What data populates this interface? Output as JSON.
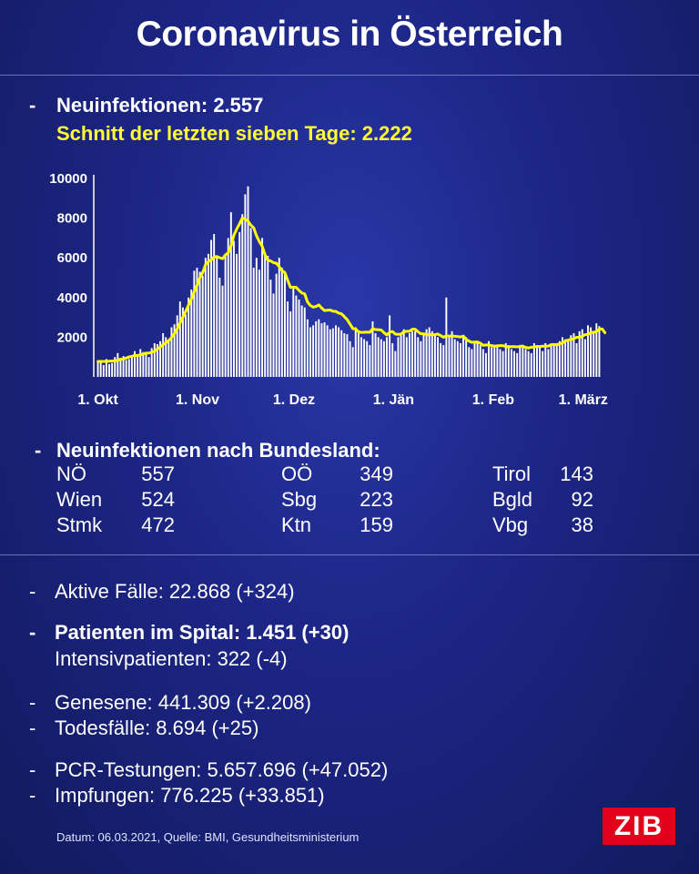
{
  "title": "Coronavirus in Österreich",
  "headline": {
    "bullet": "-",
    "new_infections": "Neuinfektionen: 2.557",
    "avg_7day": "Schnitt der letzten sieben Tage: 2.222"
  },
  "colors": {
    "bar": "#ffffff",
    "avg_line": "#ffff00",
    "logo_bg": "#e3001b",
    "avg_text": "#ffff33"
  },
  "chart_data": {
    "type": "bar",
    "x_start": "2020-10-01",
    "x_end": "2021-03-06",
    "x_tick_labels": [
      "1. Okt",
      "1. Nov",
      "1. Dez",
      "1. Jän",
      "1. Feb",
      "1. März"
    ],
    "y_ticks": [
      2000,
      4000,
      6000,
      8000,
      10000
    ],
    "ylim": [
      0,
      10000
    ],
    "grid": false,
    "series": [
      {
        "kind": "bars",
        "values": [
          800,
          750,
          600,
          900,
          650,
          700,
          1000,
          1200,
          950,
          1050,
          850,
          900,
          1100,
          1300,
          1150,
          1400,
          1250,
          1150,
          1000,
          1450,
          1700,
          1650,
          1800,
          2200,
          2000,
          1900,
          2500,
          2650,
          3100,
          3800,
          3500,
          3150,
          4000,
          4400,
          5350,
          5500,
          5300,
          5100,
          6000,
          6200,
          6900,
          7200,
          6000,
          5000,
          4600,
          6100,
          7000,
          8300,
          6850,
          6200,
          7300,
          8200,
          9200,
          9600,
          7500,
          5500,
          6000,
          5400,
          7000,
          6200,
          6100,
          4900,
          4200,
          5200,
          6000,
          5500,
          5200,
          3800,
          3300,
          4500,
          4100,
          3900,
          3600,
          3500,
          2900,
          2500,
          2600,
          2800,
          2900,
          2700,
          2750,
          2600,
          2400,
          2450,
          2600,
          2500,
          2350,
          2200,
          2150,
          1800,
          1500,
          2500,
          2200,
          2000,
          1900,
          1800,
          1600,
          2800,
          2200,
          2000,
          1900,
          1800,
          2000,
          3100,
          1700,
          1300,
          2000,
          2100,
          2400,
          2000,
          2200,
          2300,
          2300,
          2000,
          1800,
          2200,
          2400,
          2500,
          2300,
          2100,
          2000,
          1700,
          1600,
          4000,
          2000,
          2300,
          1900,
          1800,
          1700,
          2100,
          2000,
          1500,
          1400,
          1800,
          1700,
          1600,
          1400,
          1200,
          1800,
          1500,
          1550,
          1500,
          1400,
          1300,
          1700,
          1600,
          1400,
          1300,
          1200,
          1500,
          1500,
          1400,
          1300,
          1200,
          1700,
          1600,
          1500,
          1300,
          1700,
          1400,
          1600,
          1650,
          1700,
          1800,
          2000,
          1900,
          1850,
          2100,
          2200,
          1700,
          2300,
          2400,
          1900,
          2600,
          2500,
          2300,
          2700,
          2557
        ]
      },
      {
        "kind": "line",
        "name": "Schnitt der letzten sieben Tage",
        "values": [
          779,
          779,
          779,
          779,
          793,
          800,
          804,
          836,
          892,
          901,
          950,
          1007,
          1036,
          1079,
          1079,
          1107,
          1157,
          1201,
          1200,
          1243,
          1296,
          1400,
          1506,
          1632,
          1721,
          1826,
          1992,
          2179,
          2421,
          2719,
          3011,
          3306,
          3615,
          3914,
          4293,
          4613,
          4993,
          5264,
          5659,
          5809,
          5886,
          6034,
          6067,
          6006,
          5957,
          6143,
          6256,
          6583,
          7139,
          7450,
          7714,
          8014,
          7942,
          7850,
          7646,
          7514,
          7113,
          6814,
          6579,
          6157,
          5883,
          5843,
          5757,
          5729,
          5557,
          5355,
          5257,
          4870,
          4507,
          4526,
          4514,
          4357,
          4229,
          4186,
          3771,
          3600,
          3514,
          3545,
          3629,
          3471,
          3343,
          3358,
          3371,
          3307,
          3300,
          3214,
          3179,
          3036,
          2886,
          2664,
          2435,
          2416,
          2271,
          2243,
          2250,
          2257,
          2250,
          2432,
          2386,
          2379,
          2364,
          2229,
          2114,
          2257,
          2286,
          2157,
          2143,
          2157,
          2272,
          2300,
          2300,
          2400,
          2401,
          2275,
          2172,
          2172,
          2130,
          2130,
          2130,
          2130,
          2161,
          2085,
          1997,
          2080,
          2051,
          2062,
          2047,
          2032,
          2013,
          2057,
          1897,
          1803,
          1745,
          1755,
          1758,
          1697,
          1590,
          1610,
          1599,
          1580,
          1548,
          1568,
          1578,
          1574,
          1528,
          1503,
          1528,
          1525,
          1511,
          1540,
          1554,
          1484,
          1456,
          1493,
          1509,
          1535,
          1526,
          1549,
          1552,
          1550,
          1626,
          1632,
          1624,
          1668,
          1712,
          1808,
          1854,
          1887,
          1924,
          1997,
          1997,
          2042,
          2130,
          2143,
          2226,
          2252,
          2286,
          2404,
          2421,
          2222
        ]
      }
    ]
  },
  "bundesland": {
    "heading": "Neuinfektionen nach Bundesland:",
    "columns": [
      [
        {
          "name": "NÖ",
          "value": "557"
        },
        {
          "name": "Wien",
          "value": "524"
        },
        {
          "name": "Stmk",
          "value": "472"
        }
      ],
      [
        {
          "name": "OÖ",
          "value": "349"
        },
        {
          "name": "Sbg",
          "value": "223"
        },
        {
          "name": "Ktn",
          "value": "159"
        }
      ],
      [
        {
          "name": "Tirol",
          "value": "143"
        },
        {
          "name": "Bgld",
          "value": "92"
        },
        {
          "name": "Vbg",
          "value": "38"
        }
      ]
    ]
  },
  "stats": {
    "aktive": "Aktive Fälle: 22.868 (+324)",
    "spital": "Patienten im Spital: 1.451 (+30)",
    "intensiv": "Intensivpatienten: 322 (-4)",
    "genesene": "Genesene: 441.309 (+2.208)",
    "todesfaelle": "Todesfälle: 8.694 (+25)",
    "pcr": "PCR-Testungen: 5.657.696 (+47.052)",
    "impfungen": "Impfungen: 776.225 (+33.851)"
  },
  "footer": "Datum: 06.03.2021, Quelle: BMI, Gesundheitsministerium",
  "logo": "ZIB"
}
